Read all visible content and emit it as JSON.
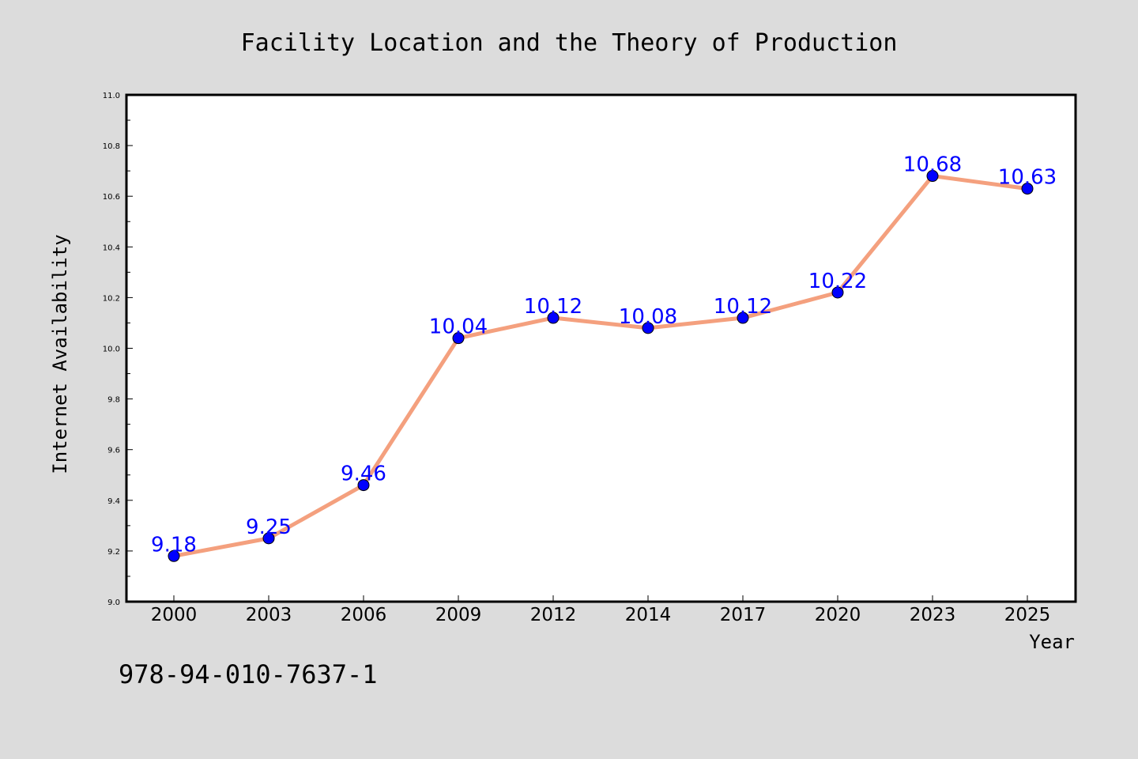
{
  "footer_code": "978-94-010-7637-1",
  "colors": {
    "background": "#dcdcdc",
    "plot_background": "#ffffff",
    "line": "#f4a07e",
    "marker": "#0000ff",
    "label": "#0000ff"
  },
  "chart_data": {
    "type": "line",
    "title": "Facility Location and the Theory of Production",
    "xlabel": "Year",
    "ylabel": "Internet Availability",
    "categories": [
      "2000",
      "2003",
      "2006",
      "2009",
      "2012",
      "2014",
      "2017",
      "2020",
      "2023",
      "2025"
    ],
    "series": [
      {
        "values": [
          9.18,
          9.25,
          9.46,
          10.04,
          10.12,
          10.08,
          10.12,
          10.22,
          10.68,
          10.63
        ],
        "data_labels": [
          "9.18",
          "9.25",
          "9.46",
          "10.04",
          "10.12",
          "10.08",
          "10.12",
          "10.22",
          "10.68",
          "10.63"
        ]
      }
    ],
    "ylim": [
      9.0,
      11.0
    ],
    "yticks": [
      "9.0",
      "9.2",
      "9.4",
      "9.6",
      "9.8",
      "10.0",
      "10.2",
      "10.4",
      "10.6",
      "10.8",
      "11.0"
    ],
    "grid": false,
    "legend": "none"
  }
}
